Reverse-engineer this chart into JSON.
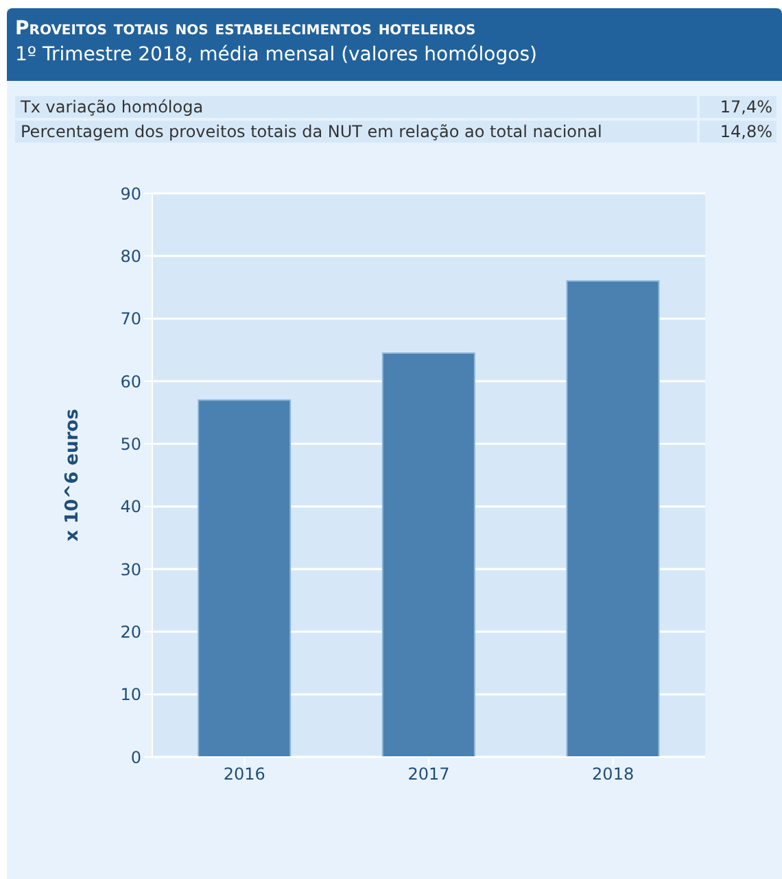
{
  "chart_data": {
    "type": "bar",
    "title": "Proveitos totais nos estabelecimentos hoteleiros",
    "subtitle": "1º Trimestre 2018, média mensal (valores homólogos)",
    "annotations": [
      "Tx variação homóloga",
      "17,4%",
      "Percentagem dos proveitos totais da NUT em relação ao total nacional",
      "14,8%"
    ],
    "categories": [
      "2016",
      "2017",
      "2018"
    ],
    "values": [
      57,
      64.5,
      76
    ],
    "color": "#4a81b0",
    "ylabel": "x 10^6 euros",
    "ylim": [
      0,
      90
    ],
    "yticks": [
      0,
      10,
      20,
      30,
      40,
      50,
      60,
      70,
      80,
      90
    ],
    "grid": "y"
  }
}
